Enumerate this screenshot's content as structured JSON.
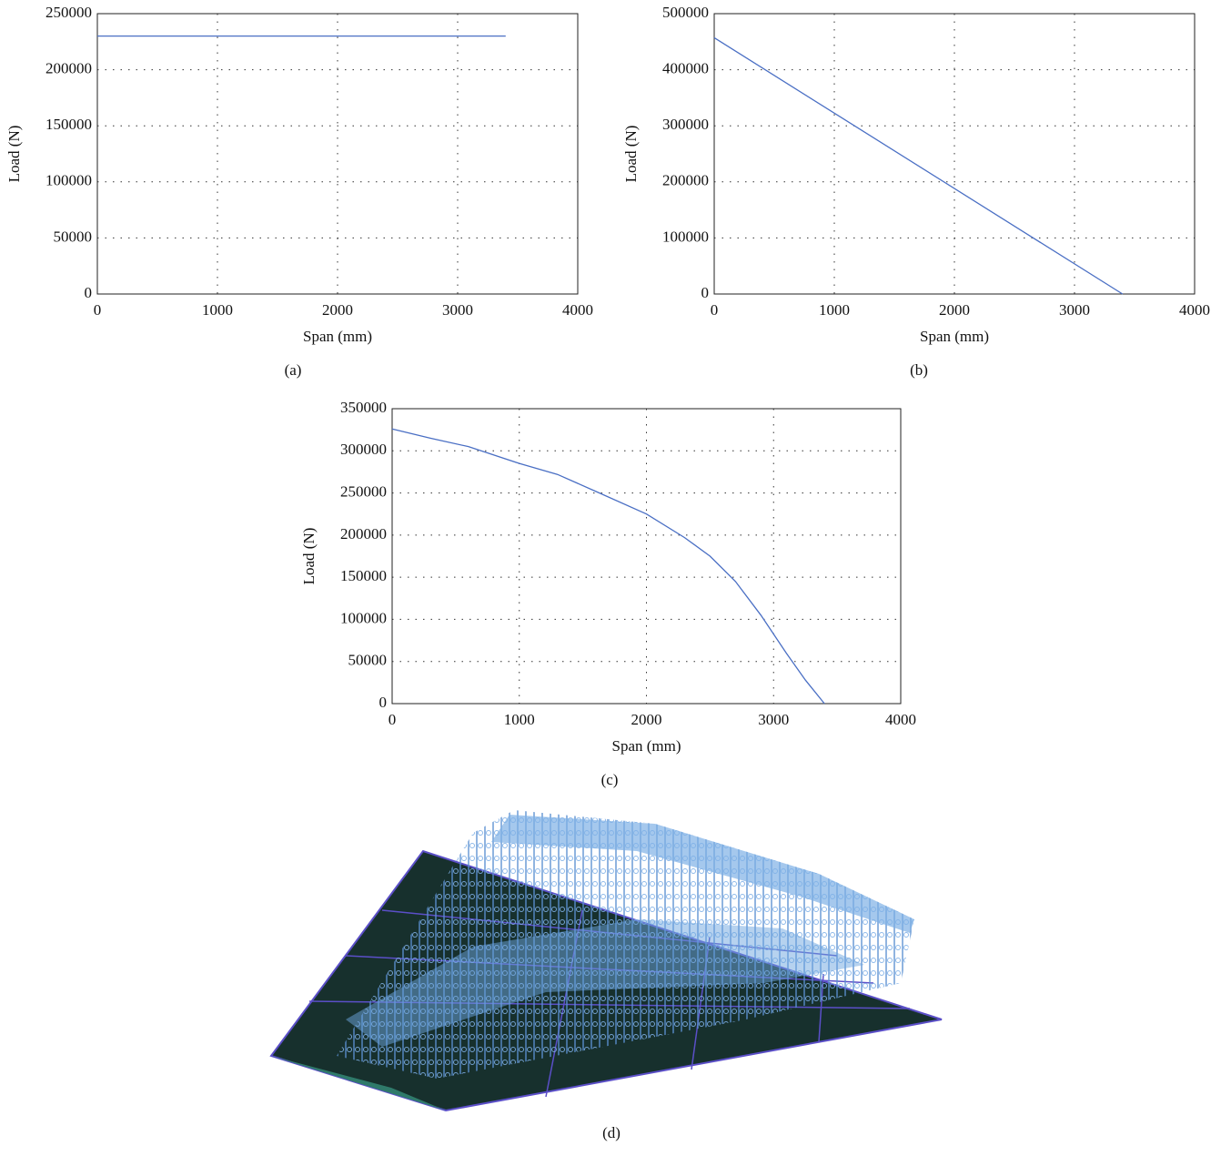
{
  "chart_data": [
    {
      "type": "line",
      "caption": "(a)",
      "x_label": "Span (mm)",
      "y_label": "Load (N)",
      "x": [
        0,
        3400
      ],
      "values": [
        230000,
        230000
      ],
      "color": "#4a6fc4",
      "xlim": [
        0,
        4000
      ],
      "xticks": [
        0,
        1000,
        2000,
        3000,
        4000
      ],
      "ylim": [
        0,
        250000
      ],
      "yticks": [
        0,
        50000,
        100000,
        150000,
        200000,
        250000
      ],
      "grid": true
    },
    {
      "type": "line",
      "caption": "(b)",
      "x_label": "Span (mm)",
      "y_label": "Load (N)",
      "x": [
        0,
        3400
      ],
      "values": [
        457000,
        0
      ],
      "color": "#4a6fc4",
      "xlim": [
        0,
        4000
      ],
      "xticks": [
        0,
        1000,
        2000,
        3000,
        4000
      ],
      "ylim": [
        0,
        500000
      ],
      "yticks": [
        0,
        100000,
        200000,
        300000,
        400000,
        500000
      ],
      "grid": true
    },
    {
      "type": "line",
      "caption": "(c)",
      "x_label": "Span (mm)",
      "y_label": "Load (N)",
      "x": [
        0,
        300,
        600,
        1000,
        1300,
        1600,
        2000,
        2300,
        2500,
        2700,
        2900,
        3100,
        3250,
        3400
      ],
      "values": [
        326000,
        315000,
        305000,
        285000,
        272000,
        252000,
        225000,
        197000,
        175000,
        145000,
        105000,
        60000,
        28000,
        0
      ],
      "color": "#4a6fc4",
      "xlim": [
        0,
        4000
      ],
      "xticks": [
        0,
        1000,
        2000,
        3000,
        4000
      ],
      "ylim": [
        0,
        350000
      ],
      "yticks": [
        0,
        50000,
        100000,
        150000,
        200000,
        250000,
        300000,
        350000
      ],
      "grid": true
    }
  ],
  "panel_d": {
    "caption": "(d)"
  }
}
